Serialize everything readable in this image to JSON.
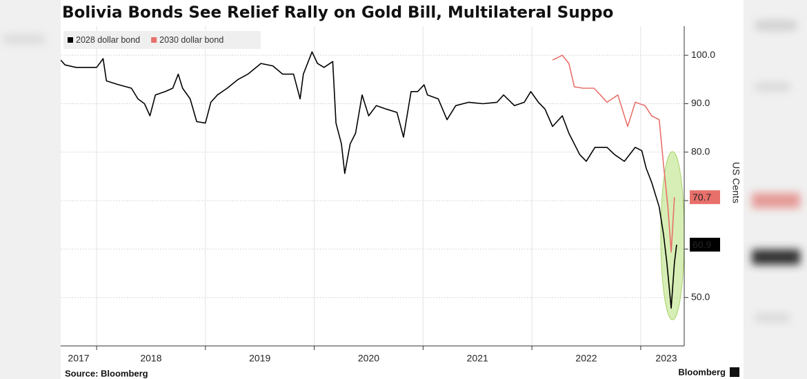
{
  "chart_data": {
    "type": "line",
    "title": "Bolivia Bonds See Relief Rally on Gold Bill, Multilateral Suppo",
    "y_axis_label": "US Cents",
    "source": "Source: Bloomberg",
    "brand": "Bloomberg",
    "xlim": [
      2017.67,
      2023.4
    ],
    "xticks": [
      2017,
      2018,
      2019,
      2020,
      2021,
      2022,
      2023
    ],
    "ylim": [
      40,
      106
    ],
    "yticks": [
      {
        "value": 50,
        "label": "50.0"
      },
      {
        "value": 60,
        "label": "60.0"
      },
      {
        "value": 70,
        "label": "70.0"
      },
      {
        "value": 80,
        "label": "80.0"
      },
      {
        "value": 90,
        "label": "90.0"
      },
      {
        "value": 100,
        "label": "100.0"
      }
    ],
    "grid": true,
    "series": [
      {
        "name": "2028 dollar bond",
        "color": "#000000",
        "x": [
          2017.67,
          2017.71,
          2017.81,
          2018.0,
          2018.06,
          2018.09,
          2018.19,
          2018.32,
          2018.38,
          2018.44,
          2018.49,
          2018.54,
          2018.63,
          2018.7,
          2018.75,
          2018.79,
          2018.86,
          2018.92,
          2019.0,
          2019.05,
          2019.11,
          2019.2,
          2019.3,
          2019.39,
          2019.51,
          2019.62,
          2019.71,
          2019.81,
          2019.87,
          2019.9,
          2019.98,
          2020.03,
          2020.09,
          2020.17,
          2020.2,
          2020.25,
          2020.28,
          2020.33,
          2020.38,
          2020.44,
          2020.5,
          2020.57,
          2020.66,
          2020.76,
          2020.82,
          2020.89,
          2020.95,
          2021.01,
          2021.04,
          2021.14,
          2021.22,
          2021.3,
          2021.42,
          2021.55,
          2021.68,
          2021.74,
          2021.84,
          2021.93,
          2021.99,
          2022.06,
          2022.12,
          2022.19,
          2022.28,
          2022.34,
          2022.44,
          2022.5,
          2022.58,
          2022.69,
          2022.76,
          2022.85,
          2022.95,
          2023.01,
          2023.05,
          2023.1,
          2023.17,
          2023.21,
          2023.24,
          2023.28,
          2023.31,
          2023.33
        ],
        "values": [
          99.0,
          98.0,
          97.5,
          97.5,
          99.3,
          94.7,
          94.0,
          93.2,
          91.0,
          90.0,
          87.5,
          91.8,
          92.5,
          93.2,
          96.1,
          93.2,
          91.0,
          86.3,
          86.0,
          90.3,
          91.8,
          93.2,
          95.0,
          96.1,
          98.3,
          97.8,
          96.1,
          96.1,
          91.0,
          96.1,
          100.7,
          98.3,
          97.5,
          98.7,
          86.0,
          81.7,
          75.6,
          81.7,
          83.9,
          91.8,
          87.5,
          89.6,
          88.9,
          88.2,
          83.1,
          92.5,
          92.5,
          93.9,
          91.8,
          91.0,
          86.7,
          89.6,
          90.3,
          90.0,
          90.3,
          91.8,
          89.6,
          90.3,
          92.5,
          90.3,
          88.9,
          85.3,
          87.5,
          83.9,
          79.5,
          78.1,
          81.0,
          81.0,
          79.5,
          78.1,
          81.0,
          80.3,
          76.7,
          73.8,
          68.7,
          63.0,
          57.2,
          47.8,
          57.2,
          60.9
        ]
      },
      {
        "name": "2030 dollar bond",
        "color": "#e8706a",
        "x": [
          2022.19,
          2022.28,
          2022.34,
          2022.39,
          2022.47,
          2022.57,
          2022.63,
          2022.69,
          2022.79,
          2022.85,
          2022.88,
          2022.95,
          2023.04,
          2023.1,
          2023.17,
          2023.21,
          2023.25,
          2023.28,
          2023.31
        ],
        "values": [
          99.0,
          100.0,
          98.3,
          93.5,
          93.2,
          93.2,
          91.8,
          90.3,
          91.8,
          87.5,
          85.3,
          90.3,
          89.6,
          87.5,
          86.7,
          77.4,
          68.7,
          59.4,
          70.7
        ]
      }
    ]
  }
}
